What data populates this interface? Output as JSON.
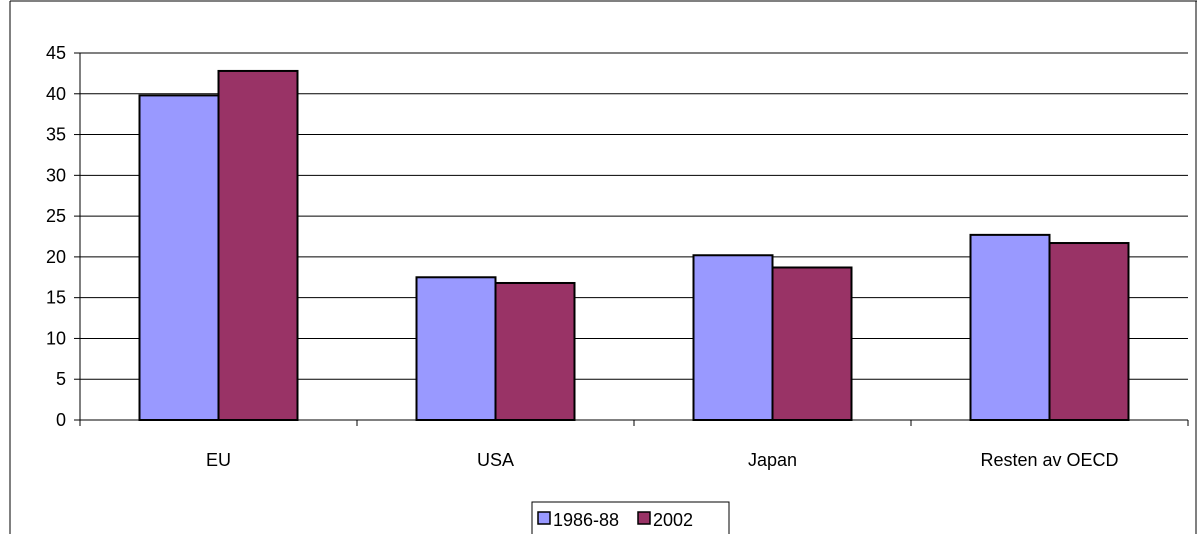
{
  "chart_data": {
    "type": "bar",
    "title": "",
    "xlabel": "",
    "ylabel": "",
    "categories": [
      "EU",
      "USA",
      "Japan",
      "Resten av OECD"
    ],
    "series": [
      {
        "name": "1986-88",
        "values": [
          39.8,
          17.5,
          20.2,
          22.7
        ],
        "color": "#9999ff"
      },
      {
        "name": "2002",
        "values": [
          42.8,
          16.8,
          18.7,
          21.7
        ],
        "color": "#993366"
      }
    ],
    "ylim": [
      0,
      45
    ],
    "yticks": [
      "0",
      "5",
      "10",
      "15",
      "20",
      "25",
      "30",
      "35",
      "40",
      "45"
    ],
    "grid": true,
    "legend_position": "bottom"
  }
}
